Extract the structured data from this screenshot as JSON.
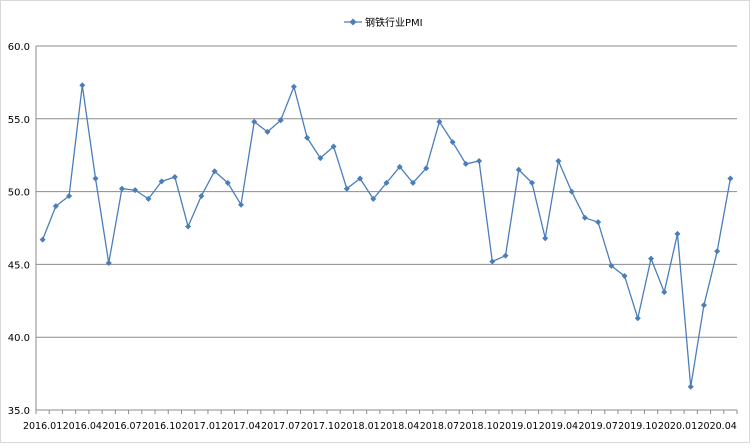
{
  "chart_data": {
    "type": "line",
    "title": "",
    "xlabel": "",
    "ylabel": "",
    "ylim": [
      35.0,
      60.0
    ],
    "y_ticks": [
      "35.0",
      "40.0",
      "45.0",
      "50.0",
      "55.0",
      "60.0"
    ],
    "x_tick_labels": [
      "2016.01",
      "2016.04",
      "2016.07",
      "2016.10",
      "2017.01",
      "2017.04",
      "2017.07",
      "2017.10",
      "2018.01",
      "2018.04",
      "2018.07",
      "2018.10",
      "2019.01",
      "2019.04",
      "2019.07",
      "2019.10",
      "2020.01",
      "2020.04"
    ],
    "x": [
      "2016.01",
      "2016.02",
      "2016.03",
      "2016.04",
      "2016.05",
      "2016.06",
      "2016.07",
      "2016.08",
      "2016.09",
      "2016.10",
      "2016.11",
      "2016.12",
      "2017.01",
      "2017.02",
      "2017.03",
      "2017.04",
      "2017.05",
      "2017.06",
      "2017.07",
      "2017.08",
      "2017.09",
      "2017.10",
      "2017.11",
      "2017.12",
      "2018.01",
      "2018.02",
      "2018.03",
      "2018.04",
      "2018.05",
      "2018.06",
      "2018.07",
      "2018.08",
      "2018.09",
      "2018.10",
      "2018.11",
      "2018.12",
      "2019.01",
      "2019.02",
      "2019.03",
      "2019.04",
      "2019.05",
      "2019.06",
      "2019.07",
      "2019.08",
      "2019.09",
      "2019.10",
      "2019.11",
      "2019.12",
      "2020.01",
      "2020.02",
      "2020.03",
      "2020.04",
      "2020.05"
    ],
    "series": [
      {
        "name": "钢铁行业PMI",
        "color": "#4a7ebb",
        "values": [
          46.7,
          49.0,
          49.7,
          57.3,
          50.9,
          45.1,
          50.2,
          50.1,
          49.5,
          50.7,
          51.0,
          47.6,
          49.7,
          51.4,
          50.6,
          49.1,
          54.8,
          54.1,
          54.9,
          57.2,
          53.7,
          52.3,
          53.1,
          50.2,
          50.9,
          49.5,
          50.6,
          51.7,
          50.6,
          51.6,
          54.8,
          53.4,
          51.9,
          52.1,
          45.2,
          45.6,
          51.5,
          50.6,
          46.8,
          52.1,
          50.0,
          48.2,
          47.9,
          44.9,
          44.2,
          41.3,
          45.4,
          43.1,
          47.1,
          36.6,
          42.2,
          45.9,
          50.9
        ]
      }
    ],
    "grid": "horizontal",
    "legend": "top"
  }
}
